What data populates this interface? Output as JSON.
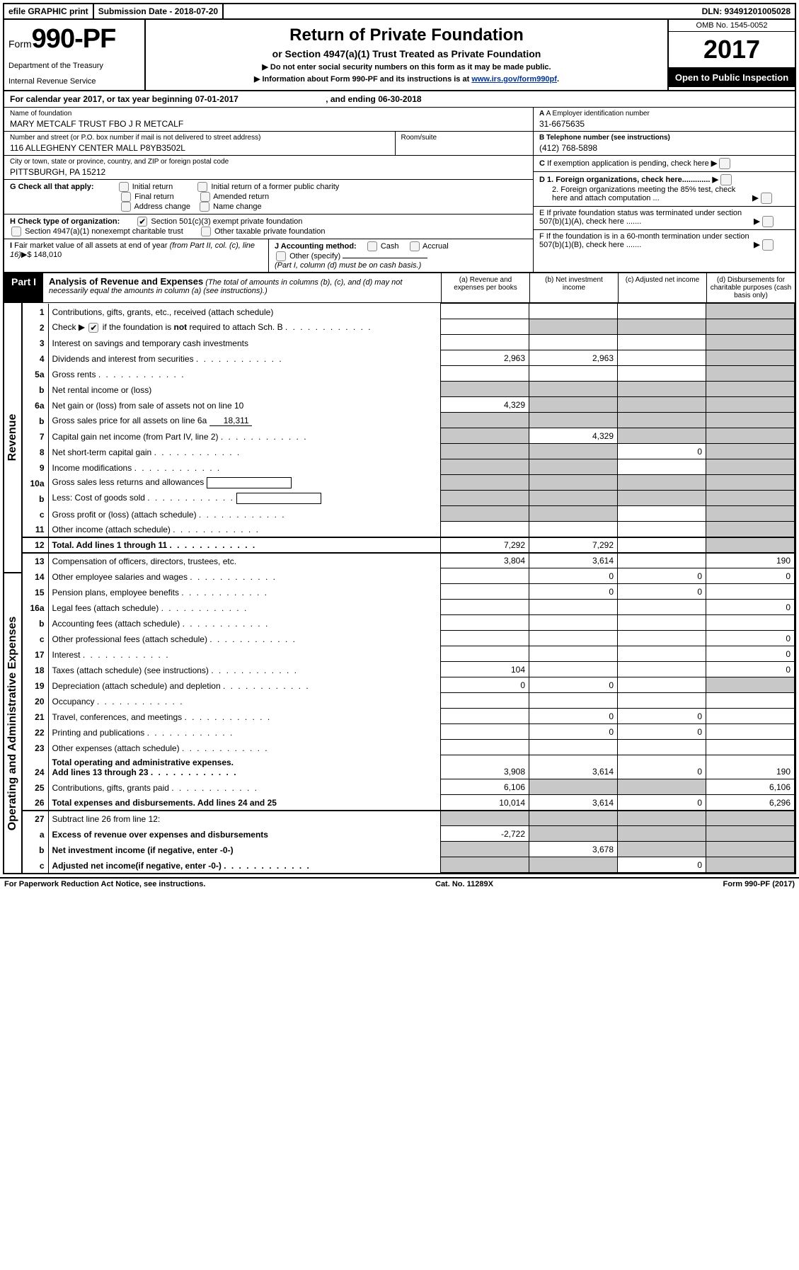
{
  "top": {
    "efile": "efile GRAPHIC print",
    "submission": "Submission Date - 2018-07-20",
    "dln": "DLN: 93491201005028"
  },
  "header": {
    "form_word": "Form",
    "form_no": "990-PF",
    "dept1": "Department of the Treasury",
    "dept2": "Internal Revenue Service",
    "title": "Return of Private Foundation",
    "subtitle": "or Section 4947(a)(1) Trust Treated as Private Foundation",
    "arrow1": "▶ Do not enter social security numbers on this form as it may be made public.",
    "arrow2_pre": "▶ Information about Form 990-PF and its instructions is at ",
    "arrow2_link": "www.irs.gov/form990pf",
    "omb": "OMB No. 1545-0052",
    "year": "2017",
    "open": "Open to Public Inspection"
  },
  "calyear": {
    "pre": "For calendar year 2017, or tax year beginning ",
    "begin": "07-01-2017",
    "mid": " , and ending ",
    "end": "06-30-2018"
  },
  "left": {
    "name_lbl": "Name of foundation",
    "name": "MARY METCALF TRUST FBO J R METCALF",
    "addr_lbl": "Number and street (or P.O. box number if mail is not delivered to street address)",
    "addr": "116 ALLEGHENY CENTER MALL P8YB3502L",
    "room_lbl": "Room/suite",
    "city_lbl": "City or town, state or province, country, and ZIP or foreign postal code",
    "city": "PITTSBURGH, PA  15212",
    "g_lbl": "G Check all that apply:",
    "g_opts": [
      "Initial return",
      "Initial return of a former public charity",
      "Final return",
      "Amended return",
      "Address change",
      "Name change"
    ],
    "h_lbl": "H Check type of organization:",
    "h_opt1": "Section 501(c)(3) exempt private foundation",
    "h_opt2": "Section 4947(a)(1) nonexempt charitable trust",
    "h_opt3": "Other taxable private foundation",
    "i_lbl": "I Fair market value of all assets at end of year (from Part II, col. (c), line 16)▶$",
    "i_val": " 148,010",
    "j_lbl": "J Accounting method:",
    "j_cash": "Cash",
    "j_accr": "Accrual",
    "j_other": "Other (specify)",
    "j_note": "(Part I, column (d) must be on cash basis.)"
  },
  "right": {
    "a_lbl": "A Employer identification number",
    "a_val": "31-6675635",
    "b_lbl": "B Telephone number (see instructions)",
    "b_val": "(412) 768-5898",
    "c_lbl": "C If exemption application is pending, check here",
    "d1": "D 1. Foreign organizations, check here.............",
    "d2": "2. Foreign organizations meeting the 85% test, check here and attach computation ...",
    "e": "E  If private foundation status was terminated under section 507(b)(1)(A), check here .......",
    "f": "F  If the foundation is in a 60-month termination under section 507(b)(1)(B), check here ......."
  },
  "part1": {
    "tab": "Part I",
    "title": "Analysis of Revenue and Expenses",
    "note": " (The total of amounts in columns (b), (c), and (d) may not necessarily equal the amounts in column (a) (see instructions).)",
    "cols": {
      "a": "(a)   Revenue and expenses per books",
      "b": "(b)   Net investment income",
      "c": "(c)   Adjusted net income",
      "d": "(d)   Disbursements for charitable purposes (cash basis only)"
    }
  },
  "sides": {
    "rev": "Revenue",
    "exp": "Operating and Administrative Expenses"
  },
  "rows": [
    {
      "no": "1",
      "desc": "Contributions, gifts, grants, etc., received (attach schedule)",
      "a": "",
      "b": "",
      "c": "",
      "d": "g"
    },
    {
      "no": "2",
      "desc": "Check ▶ [✔] if the foundation is not required to attach Sch. B",
      "a": "",
      "b": "g",
      "c": "g",
      "d": "g",
      "dots": true,
      "chk": true
    },
    {
      "no": "3",
      "desc": "Interest on savings and temporary cash investments",
      "a": "",
      "b": "",
      "c": "",
      "d": "g"
    },
    {
      "no": "4",
      "desc": "Dividends and interest from securities",
      "a": "2,963",
      "b": "2,963",
      "c": "",
      "d": "g",
      "dots": true
    },
    {
      "no": "5a",
      "desc": "Gross rents",
      "a": "",
      "b": "",
      "c": "",
      "d": "g",
      "dots": true
    },
    {
      "no": "b",
      "desc": "Net rental income or (loss)",
      "a": "g",
      "b": "g",
      "c": "g",
      "d": "g",
      "sub": true
    },
    {
      "no": "6a",
      "desc": "Net gain or (loss) from sale of assets not on line 10",
      "a": "4,329",
      "b": "g",
      "c": "g",
      "d": "g"
    },
    {
      "no": "b",
      "desc": "Gross sales price for all assets on line 6a",
      "a": "g",
      "b": "g",
      "c": "g",
      "d": "g",
      "subval": "18,311"
    },
    {
      "no": "7",
      "desc": "Capital gain net income (from Part IV, line 2)",
      "a": "g",
      "b": "4,329",
      "c": "g",
      "d": "g",
      "dots": true
    },
    {
      "no": "8",
      "desc": "Net short-term capital gain",
      "a": "g",
      "b": "g",
      "c": "0",
      "d": "g",
      "dots": true
    },
    {
      "no": "9",
      "desc": "Income modifications",
      "a": "g",
      "b": "g",
      "c": "",
      "d": "g",
      "dots": true
    },
    {
      "no": "10a",
      "desc": "Gross sales less returns and allowances",
      "a": "g",
      "b": "g",
      "c": "g",
      "d": "g",
      "box": true
    },
    {
      "no": "b",
      "desc": "Less: Cost of goods sold",
      "a": "g",
      "b": "g",
      "c": "g",
      "d": "g",
      "dots": true,
      "box": true
    },
    {
      "no": "c",
      "desc": "Gross profit or (loss) (attach schedule)",
      "a": "g",
      "b": "g",
      "c": "",
      "d": "g",
      "dots": true
    },
    {
      "no": "11",
      "desc": "Other income (attach schedule)",
      "a": "",
      "b": "",
      "c": "",
      "d": "g",
      "dots": true
    },
    {
      "no": "12",
      "desc": "Total. Add lines 1 through 11",
      "a": "7,292",
      "b": "7,292",
      "c": "",
      "d": "g",
      "dots": true,
      "bold": true,
      "sec": true
    },
    {
      "no": "13",
      "desc": "Compensation of officers, directors, trustees, etc.",
      "a": "3,804",
      "b": "3,614",
      "c": "",
      "d": "190",
      "sec": true
    },
    {
      "no": "14",
      "desc": "Other employee salaries and wages",
      "a": "",
      "b": "0",
      "c": "0",
      "d": "0",
      "dots": true
    },
    {
      "no": "15",
      "desc": "Pension plans, employee benefits",
      "a": "",
      "b": "0",
      "c": "0",
      "d": "",
      "dots": true
    },
    {
      "no": "16a",
      "desc": "Legal fees (attach schedule)",
      "a": "",
      "b": "",
      "c": "",
      "d": "0",
      "dots": true
    },
    {
      "no": "b",
      "desc": "Accounting fees (attach schedule)",
      "a": "",
      "b": "",
      "c": "",
      "d": "",
      "dots": true
    },
    {
      "no": "c",
      "desc": "Other professional fees (attach schedule)",
      "a": "",
      "b": "",
      "c": "",
      "d": "0",
      "dots": true
    },
    {
      "no": "17",
      "desc": "Interest",
      "a": "",
      "b": "",
      "c": "",
      "d": "0",
      "dots": true
    },
    {
      "no": "18",
      "desc": "Taxes (attach schedule) (see instructions)",
      "a": "104",
      "b": "",
      "c": "",
      "d": "0",
      "dots": true
    },
    {
      "no": "19",
      "desc": "Depreciation (attach schedule) and depletion",
      "a": "0",
      "b": "0",
      "c": "",
      "d": "g",
      "dots": true
    },
    {
      "no": "20",
      "desc": "Occupancy",
      "a": "",
      "b": "",
      "c": "",
      "d": "",
      "dots": true
    },
    {
      "no": "21",
      "desc": "Travel, conferences, and meetings",
      "a": "",
      "b": "0",
      "c": "0",
      "d": "",
      "dots": true
    },
    {
      "no": "22",
      "desc": "Printing and publications",
      "a": "",
      "b": "0",
      "c": "0",
      "d": "",
      "dots": true
    },
    {
      "no": "23",
      "desc": "Other expenses (attach schedule)",
      "a": "",
      "b": "",
      "c": "",
      "d": "",
      "dots": true
    },
    {
      "no": "24",
      "desc": "Total operating and administrative expenses. Add lines 13 through 23",
      "a": "3,908",
      "b": "3,614",
      "c": "0",
      "d": "190",
      "dots": true,
      "bold": true
    },
    {
      "no": "25",
      "desc": "Contributions, gifts, grants paid",
      "a": "6,106",
      "b": "g",
      "c": "g",
      "d": "6,106",
      "dots": true
    },
    {
      "no": "26",
      "desc": "Total expenses and disbursements. Add lines 24 and 25",
      "a": "10,014",
      "b": "3,614",
      "c": "0",
      "d": "6,296",
      "bold": true
    },
    {
      "no": "27",
      "desc": "Subtract line 26 from line 12:",
      "a": "g",
      "b": "g",
      "c": "g",
      "d": "g",
      "sec": true
    },
    {
      "no": "a",
      "desc": "Excess of revenue over expenses and disbursements",
      "a": "-2,722",
      "b": "g",
      "c": "g",
      "d": "g",
      "bold": true
    },
    {
      "no": "b",
      "desc": "Net investment income (if negative, enter -0-)",
      "a": "g",
      "b": "3,678",
      "c": "g",
      "d": "g",
      "bold": true
    },
    {
      "no": "c",
      "desc": "Adjusted net income(if negative, enter -0-)",
      "a": "g",
      "b": "g",
      "c": "0",
      "d": "g",
      "bold": true,
      "dots": true
    }
  ],
  "bottom": {
    "left": "For Paperwork Reduction Act Notice, see instructions.",
    "center": "Cat. No. 11289X",
    "right": "Form 990-PF (2017)"
  }
}
